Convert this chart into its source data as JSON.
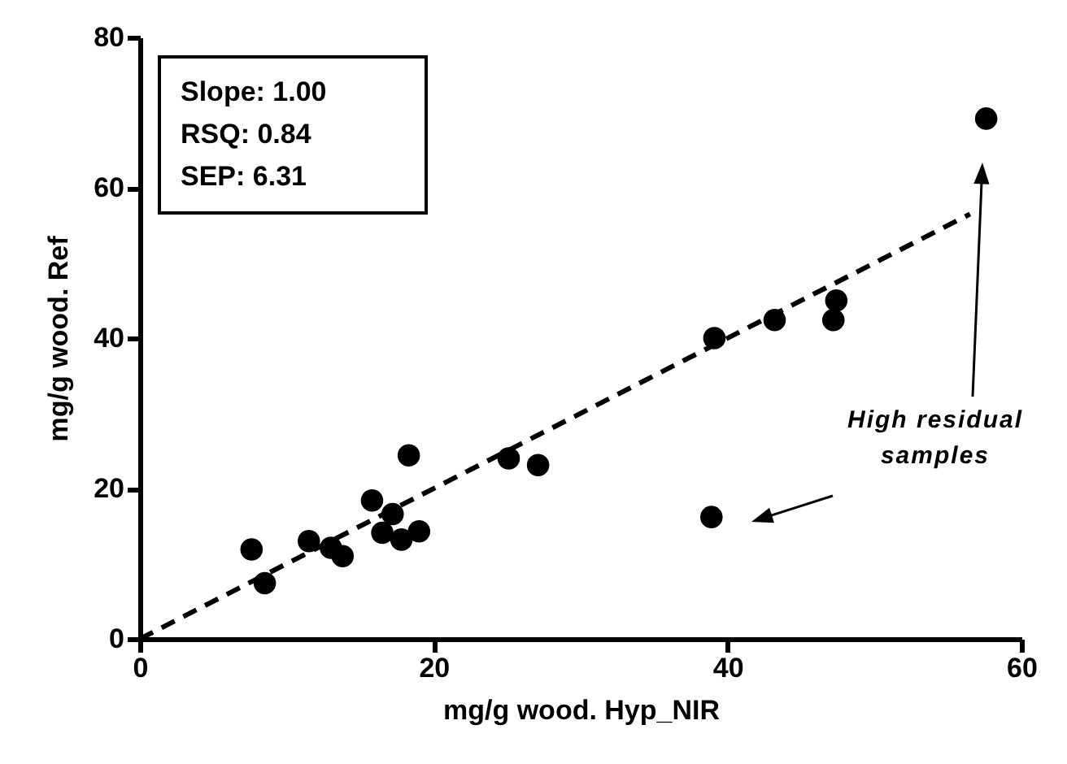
{
  "chart_data": {
    "type": "scatter",
    "xlabel": "mg/g wood. Hyp_NIR",
    "ylabel": "mg/g wood. Ref",
    "annotations": [
      "Slope: 1.00",
      "RSQ: 0.84",
      "SEP: 6.31",
      "High residual samples"
    ],
    "grid": false,
    "xlim": [
      0,
      60
    ],
    "xticks": [
      0,
      20,
      40,
      60
    ],
    "ylim": [
      0,
      80
    ],
    "yticks": [
      0,
      20,
      40,
      60,
      80
    ],
    "series": [
      {
        "marker": "circle",
        "color": "#000000",
        "x": [
          7.6,
          8.5,
          11.5,
          13.0,
          13.8,
          15.8,
          17.2,
          16.5,
          17.8,
          19.0,
          18.3,
          25.1,
          27.1,
          39.1,
          43.2,
          47.4,
          47.2,
          57.6,
          38.9
        ],
        "values": [
          11.9,
          7.4,
          13.0,
          12.1,
          11.0,
          18.4,
          16.6,
          14.1,
          13.2,
          14.3,
          24.4,
          24.0,
          23.1,
          40.0,
          42.4,
          45.0,
          42.4,
          69.2,
          16.2
        ]
      },
      {
        "type": "line",
        "line_style": "dashed",
        "color": "#000000",
        "x": [
          0,
          56.5
        ],
        "values": [
          0,
          56.5
        ]
      }
    ]
  }
}
